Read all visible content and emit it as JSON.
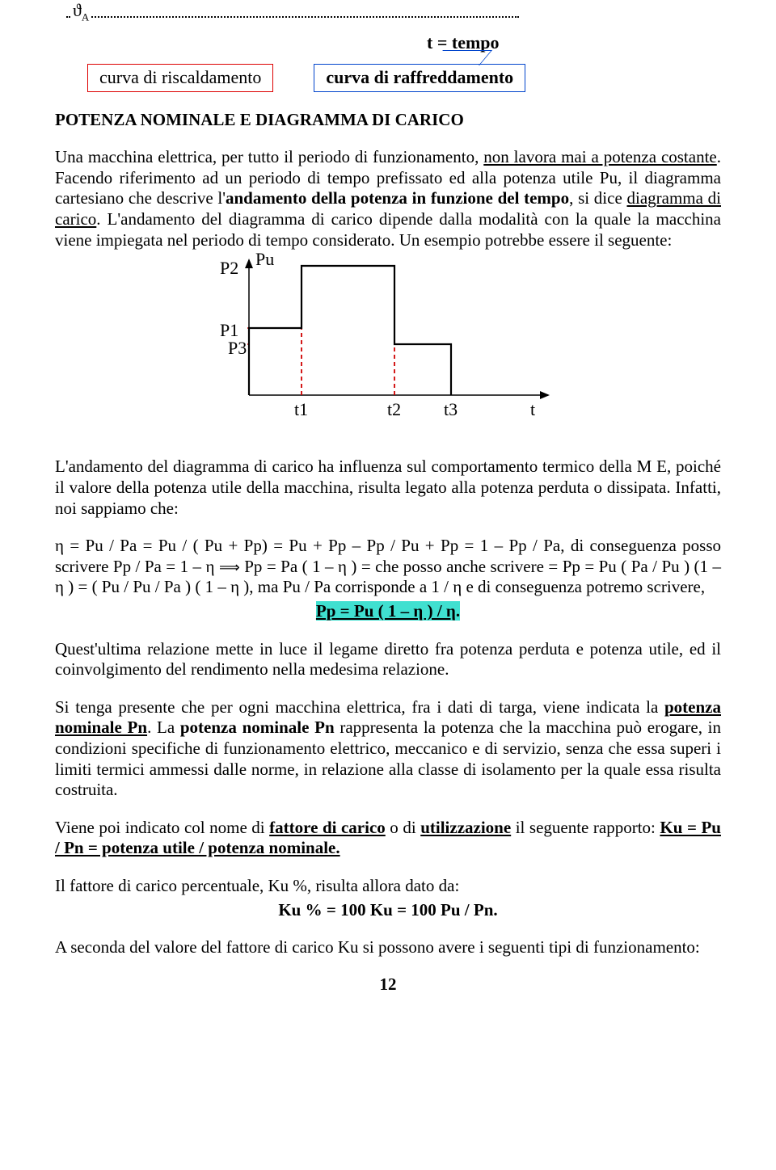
{
  "theta": {
    "label": "ϑ",
    "sub": "A"
  },
  "t_tempo": "t = tempo",
  "legend": {
    "ris": "curva di riscaldamento",
    "raff": "curva di raffreddamento"
  },
  "section_title": "POTENZA NOMINALE E DIAGRAMMA DI CARICO",
  "p1a": "Una macchina elettrica, per tutto il periodo di funzionamento, ",
  "p1b": "non lavora mai a potenza costante",
  "p1c": ". Facendo riferimento ad un periodo di tempo prefissato ed alla potenza utile Pu, il diagramma cartesiano che descrive l'",
  "p1d": "andamento della potenza in funzione del tempo",
  "p1e": ", si dice ",
  "p1f": "diagramma di carico",
  "p1g": ". L'andamento del diagramma di carico dipende dalla modalità con la quale la macchina viene impiegata nel periodo di tempo considerato. Un esempio potrebbe essere il seguente:",
  "chart": {
    "type": "step-line",
    "ylabel": "Pu",
    "ylevels": [
      {
        "label": "P2",
        "y": 15
      },
      {
        "label": "P1",
        "y": 92
      },
      {
        "label": "P3",
        "y": 112
      }
    ],
    "xticks": [
      {
        "label": "t1",
        "x": 95
      },
      {
        "label": "t2",
        "x": 210
      },
      {
        "label": "t3",
        "x": 280
      }
    ],
    "xend_label": "t",
    "axis_color": "#000000",
    "step_color": "#000000",
    "drop_color": "#d00000",
    "background": "#ffffff",
    "axis_width": 1.5,
    "step_width": 2.2,
    "drop_dash": "5,4",
    "xaxis_y": 175,
    "yaxis_x": 30,
    "x_extent": 370,
    "y_top": 8
  },
  "p2a": "L'andamento del diagramma di carico ha influenza sul comportamento termico della M E, poiché il valore della potenza utile  della macchina, risulta legato alla potenza perduta o dissipata. Infatti, noi sappiamo che:",
  "p2b": "η = Pu / Pa = Pu / ( Pu + Pp) = Pu + Pp – Pp / Pu + Pp = 1 – Pp / Pa, di conseguenza posso scrivere  Pp / Pa = 1 – η  ",
  "p2barrow": "⟹",
  "p2c": "  Pp = Pa ( 1 – η ) = che posso anche scrivere = Pp = Pu ( Pa / Pu ) (1 – η ) = ( Pu / Pu / Pa ) ( 1 – η ), ma Pu / Pa corrisponde a 1 / η e di conseguenza potremo scrivere,",
  "eq_hl": "Pp = Pu ( 1 – η ) / η",
  "p3": "Quest'ultima relazione mette in luce il legame diretto fra  potenza perduta e potenza utile, ed il coinvolgimento del rendimento nella medesima relazione.",
  "p4a": "Si tenga presente che per ogni macchina elettrica, fra i dati di targa, viene indicata la ",
  "p4b": "potenza nominale Pn",
  "p4c": ". La ",
  "p4d": "potenza nominale Pn",
  "p4e": " rappresenta la potenza che la macchina può erogare, in condizioni specifiche di funzionamento elettrico, meccanico e di servizio, senza che essa superi i limiti termici ammessi dalle norme, in relazione alla classe di isolamento per la quale essa risulta costruita.",
  "p5a": "Viene poi indicato col nome di ",
  "p5b": "fattore di carico",
  "p5c": " o di ",
  "p5d": "utilizzazione",
  "p5e": " il seguente rapporto:                  ",
  "p5f": "Ku = Pu / Pn = potenza utile / potenza nominale.",
  "p6": "Il fattore di carico percentuale, Ku %, risulta allora dato da:",
  "eq2": "Ku % = 100 Ku = 100 Pu / Pn.",
  "p7": "A seconda del valore del fattore di carico Ku si possono avere i seguenti tipi di funzionamento:",
  "pageno": "12"
}
